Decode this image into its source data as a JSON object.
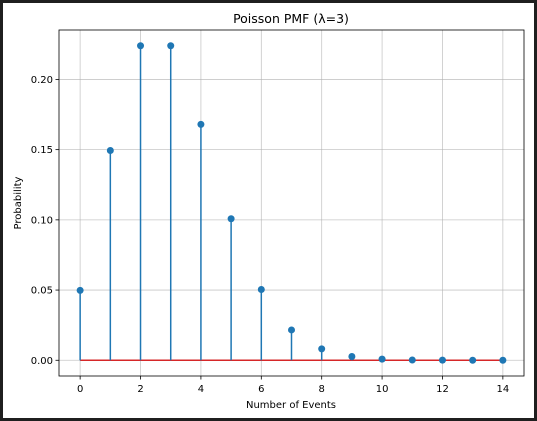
{
  "chart_data": {
    "type": "stem",
    "title": "Poisson PMF (λ=3)",
    "xlabel": "Number of Events",
    "ylabel": "Probability",
    "x": [
      0,
      1,
      2,
      3,
      4,
      5,
      6,
      7,
      8,
      9,
      10,
      11,
      12,
      13,
      14
    ],
    "values": [
      0.0498,
      0.1494,
      0.224,
      0.224,
      0.168,
      0.1008,
      0.0504,
      0.0216,
      0.0081,
      0.0027,
      0.0008,
      0.0002,
      0.0001,
      0.0,
      0.0
    ],
    "xlim": [
      -0.7,
      14.7
    ],
    "ylim": [
      -0.0112,
      0.2352
    ],
    "xticks": [
      0,
      2,
      4,
      6,
      8,
      10,
      12,
      14
    ],
    "xtick_labels": [
      "0",
      "2",
      "4",
      "6",
      "8",
      "10",
      "12",
      "14"
    ],
    "yticks": [
      0.0,
      0.05,
      0.1,
      0.15,
      0.2
    ],
    "ytick_labels": [
      "0.00",
      "0.05",
      "0.10",
      "0.15",
      "0.20"
    ],
    "grid": true,
    "colors": {
      "stem": "#1f77b4",
      "marker": "#1f77b4",
      "baseline": "#d62728",
      "grid": "#b0b0b0"
    }
  }
}
